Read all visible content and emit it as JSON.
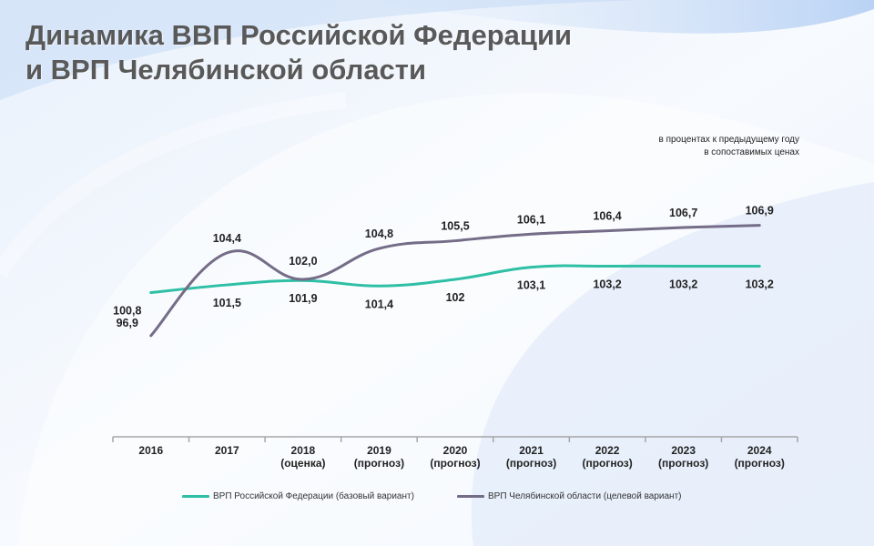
{
  "title": {
    "line1": "Динамика ВВП Российской Федерации",
    "line2": "и ВРП Челябинской области"
  },
  "unit_note": {
    "line1": "в процентах к предыдущему году",
    "line2": "в сопоставимых ценах"
  },
  "colors": {
    "rf": "#2ebfa5",
    "chel": "#756c88",
    "title": "#595959",
    "axis": "#a6a6a6"
  },
  "chart_data": {
    "type": "line",
    "categories": [
      [
        "2016"
      ],
      [
        "2017"
      ],
      [
        "2018",
        "(оценка)"
      ],
      [
        "2019",
        "(прогноз)"
      ],
      [
        "2020",
        "(прогноз)"
      ],
      [
        "2021",
        "(прогноз)"
      ],
      [
        "2022",
        "(прогноз)"
      ],
      [
        "2023",
        "(прогноз)"
      ],
      [
        "2024",
        "(прогноз)"
      ]
    ],
    "ylim": [
      94,
      110
    ],
    "grid": false,
    "legend_position": "bottom",
    "series": [
      {
        "name": "ВРП Российской Федерации (базовый вариант)",
        "color": "#2ebfa5",
        "values": [
          100.8,
          101.5,
          101.9,
          101.4,
          102.0,
          103.1,
          103.2,
          103.2,
          103.2
        ],
        "labels": [
          "100,8",
          "101,5",
          "101,9",
          "101,4",
          "102",
          "103,1",
          "103,2",
          "103,2",
          "103,2"
        ],
        "label_placement": "below"
      },
      {
        "name": "ВРП Челябинской области (целевой вариант)",
        "color": "#756c88",
        "values": [
          96.9,
          104.4,
          102.0,
          104.8,
          105.5,
          106.1,
          106.4,
          106.7,
          106.9
        ],
        "labels": [
          "96,9",
          "104,4",
          "102,0",
          "104,8",
          "105,5",
          "106,1",
          "106,4",
          "106,7",
          "106,9"
        ],
        "label_placement": "above"
      }
    ]
  }
}
